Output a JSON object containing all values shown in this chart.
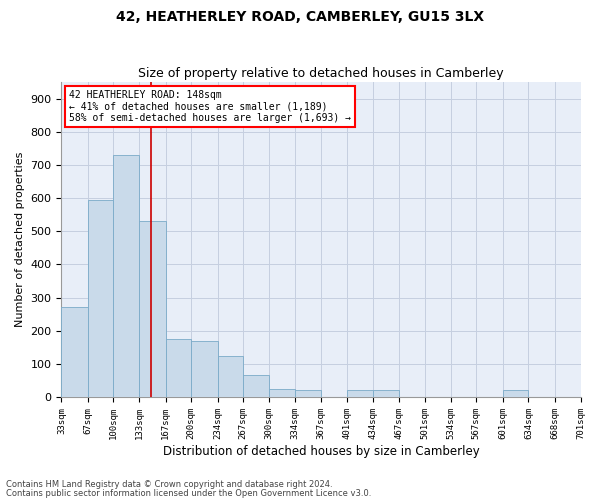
{
  "title": "42, HEATHERLEY ROAD, CAMBERLEY, GU15 3LX",
  "subtitle": "Size of property relative to detached houses in Camberley",
  "xlabel": "Distribution of detached houses by size in Camberley",
  "ylabel": "Number of detached properties",
  "footnote1": "Contains HM Land Registry data © Crown copyright and database right 2024.",
  "footnote2": "Contains public sector information licensed under the Open Government Licence v3.0.",
  "bar_color": "#c9daea",
  "bar_edge_color": "#7aaac8",
  "grid_color": "#c5cfe0",
  "background_color": "#e8eef8",
  "vline_color": "#cc0000",
  "vline_x": 148,
  "annotation_line1": "42 HEATHERLEY ROAD: 148sqm",
  "annotation_line2": "← 41% of detached houses are smaller (1,189)",
  "annotation_line3": "58% of semi-detached houses are larger (1,693) →",
  "bin_edges": [
    33,
    67,
    100,
    133,
    167,
    200,
    234,
    267,
    300,
    334,
    367,
    401,
    434,
    467,
    501,
    534,
    567,
    601,
    634,
    668,
    701
  ],
  "bar_heights": [
    270,
    595,
    730,
    530,
    175,
    170,
    125,
    65,
    25,
    20,
    0,
    20,
    20,
    0,
    0,
    0,
    0,
    20,
    0,
    0
  ],
  "ylim": [
    0,
    950
  ],
  "yticks": [
    0,
    100,
    200,
    300,
    400,
    500,
    600,
    700,
    800,
    900
  ]
}
